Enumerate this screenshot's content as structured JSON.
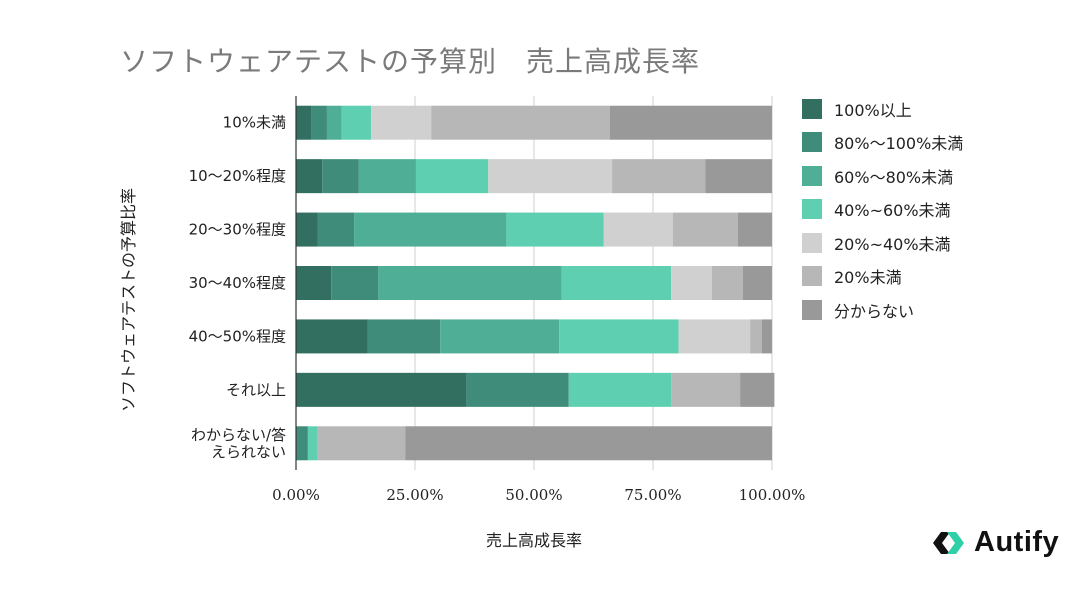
{
  "chart_data": {
    "type": "bar",
    "orientation": "horizontal",
    "stacked": true,
    "title": "ソフトウェアテストの予算別　売上高成長率",
    "xlabel": "売上高成長率",
    "ylabel": "ソフトウェアテストの予算比率",
    "xlim": [
      0,
      1
    ],
    "xticks": [
      "0.00%",
      "25.00%",
      "50.00%",
      "75.00%",
      "100.00%"
    ],
    "legend_position": "right",
    "categories": [
      [
        "10%未満"
      ],
      [
        "10〜20%程度"
      ],
      [
        "20〜30%程度"
      ],
      [
        "30〜40%程度"
      ],
      [
        "40〜50%程度"
      ],
      [
        "それ以上"
      ],
      [
        "わからない/答",
        "えられない"
      ]
    ],
    "series": [
      {
        "name": "100%以上",
        "color": "#336f61",
        "values": [
          0.033,
          0.055,
          0.046,
          0.074,
          0.151,
          0.358,
          0.0
        ]
      },
      {
        "name": "80%〜100%未満",
        "color": "#3f8c7a",
        "values": [
          0.032,
          0.077,
          0.076,
          0.099,
          0.152,
          0.215,
          0.025
        ]
      },
      {
        "name": "60%〜80%未満",
        "color": "#4fae96",
        "values": [
          0.031,
          0.12,
          0.32,
          0.385,
          0.25,
          0.0,
          0.0
        ]
      },
      {
        "name": "40%~60%未満",
        "color": "#5ecfb1",
        "values": [
          0.062,
          0.152,
          0.204,
          0.23,
          0.251,
          0.215,
          0.02
        ]
      },
      {
        "name": "20%~40%未満",
        "color": "#d0d0d0",
        "values": [
          0.126,
          0.26,
          0.146,
          0.086,
          0.15,
          0.0,
          0.0
        ]
      },
      {
        "name": "20%未満",
        "color": "#b7b7b7",
        "values": [
          0.375,
          0.196,
          0.136,
          0.065,
          0.025,
          0.145,
          0.185
        ]
      },
      {
        "name": "分からない",
        "color": "#999999",
        "values": [
          0.341,
          0.14,
          0.072,
          0.061,
          0.021,
          0.072,
          0.77
        ]
      }
    ]
  },
  "brand": {
    "name": "Autify"
  }
}
